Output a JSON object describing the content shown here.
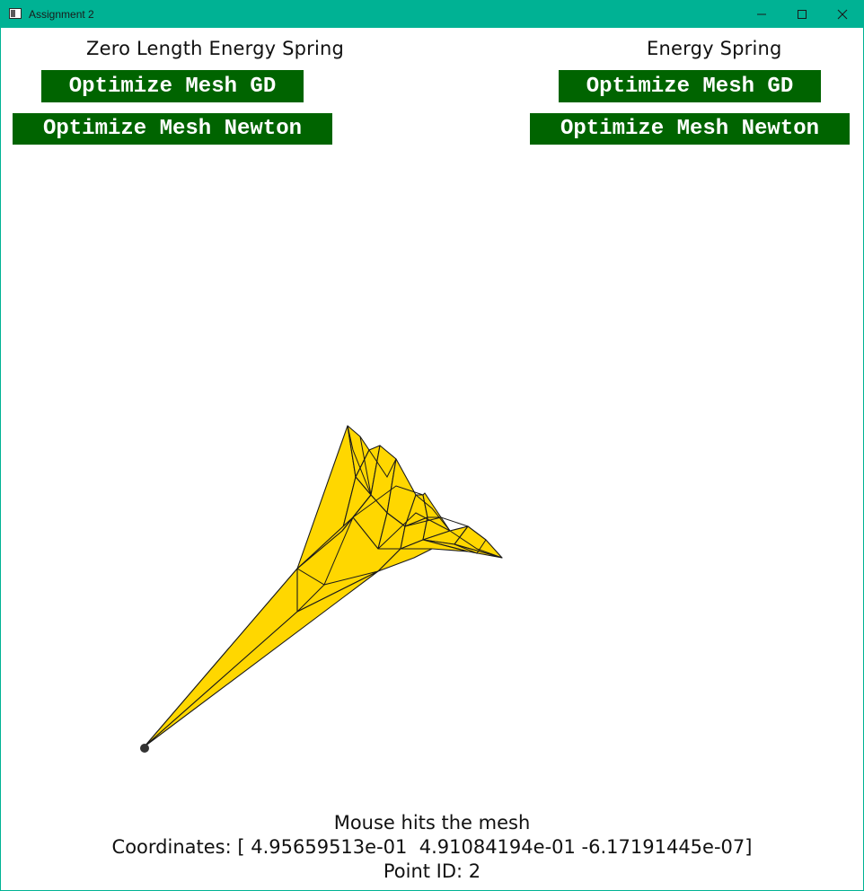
{
  "window": {
    "title": "Assignment 2",
    "titlebar_color": "#00b294",
    "controls": [
      "minimize-icon",
      "maximize-icon",
      "close-icon"
    ]
  },
  "left_panel": {
    "heading": "Zero Length Energy Spring",
    "gd_button": "Optimize Mesh GD",
    "newton_button": "Optimize Mesh Newton"
  },
  "right_panel": {
    "heading": "Energy Spring",
    "gd_button": "Optimize Mesh GD",
    "newton_button": "Optimize Mesh Newton"
  },
  "button_color": "#006400",
  "mesh": {
    "fill_color": "#ffd700",
    "edge_color": "#1a1a1a",
    "selected_point_color": "#333333"
  },
  "status": {
    "line1": "Mouse hits the mesh",
    "line2": "Coordinates: [ 4.95659513e-01  4.91084194e-01 -6.17191445e-07]",
    "line3": "Point ID: 2"
  }
}
